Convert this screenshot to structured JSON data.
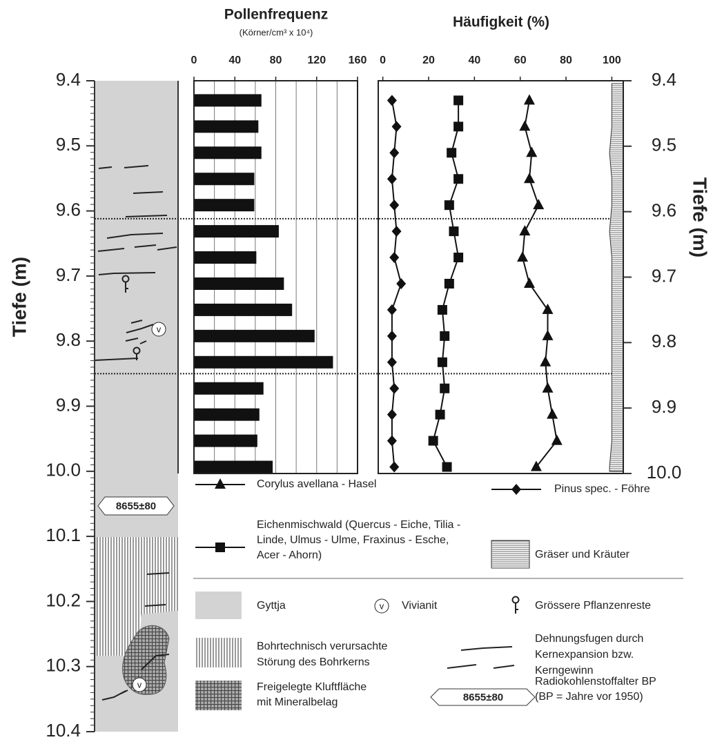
{
  "chart_data": [
    {
      "type": "depth",
      "ylabel": "Tiefe (m)",
      "ylim": [
        9.4,
        10.4
      ],
      "yticks": [
        9.4,
        9.5,
        9.6,
        9.7,
        9.8,
        9.9,
        {
          "value": 10,
          "label": "10.0"
        },
        10.1,
        10.2,
        10.3,
        10.4
      ],
      "minor_tick_step": 0.01,
      "boundaries": [
        9.612,
        9.85
      ],
      "date_label": "8655±80"
    },
    {
      "type": "bar",
      "title": "Pollenfrequenz",
      "subtitle": "(Körner/cm³ x 10⁴)",
      "y": [
        9.43,
        9.47,
        9.51,
        9.55,
        9.59,
        9.63,
        9.67,
        9.71,
        9.75,
        9.79,
        9.83,
        9.87,
        9.91,
        9.95,
        9.99
      ],
      "values": [
        66,
        63,
        66,
        59,
        59,
        83,
        61,
        88,
        96,
        118,
        136,
        68,
        64,
        62,
        77
      ],
      "color": "#111111",
      "xlim": [
        0,
        160
      ],
      "xticks": [
        0,
        40,
        80,
        120,
        160
      ],
      "xgrid": [
        20,
        40,
        60,
        80,
        100,
        120,
        140
      ],
      "ylim": [
        9.4,
        10.0
      ]
    },
    {
      "type": "line",
      "title": "Häufigkeit (%)",
      "y": [
        9.43,
        9.47,
        9.51,
        9.55,
        9.59,
        9.63,
        9.67,
        9.71,
        9.75,
        9.79,
        9.83,
        9.87,
        9.91,
        9.95,
        9.99
      ],
      "xlim": [
        -2,
        105
      ],
      "xticks": [
        0,
        20,
        40,
        60,
        80,
        100
      ],
      "ylim": [
        9.4,
        10.0
      ],
      "ylabel": "Tiefe (m)",
      "yticks": [
        9.4,
        9.5,
        9.6,
        9.7,
        9.8,
        9.9,
        {
          "value": 10,
          "label": "10.0"
        }
      ],
      "series": [
        {
          "name": "Corylus avellana - Hasel",
          "color": "#111111",
          "marker": "triangle",
          "values": [
            64,
            62,
            65,
            64,
            68,
            62,
            61,
            64,
            72,
            72,
            71,
            72,
            74,
            76,
            67
          ]
        },
        {
          "name": "Pinus spec. - Föhre",
          "color": "#111111",
          "marker": "diamond",
          "values": [
            4,
            6,
            5,
            4,
            5,
            6,
            5,
            8,
            4,
            4,
            4,
            5,
            4,
            4,
            5
          ]
        },
        {
          "name": "Eichenmischwald (Quercus - Eiche, Tilia - Linde, Ulmus - Ulme, Fraxinus - Esche, Acer - Ahorn)",
          "color": "#111111",
          "marker": "square",
          "values": [
            33,
            33,
            30,
            33,
            29,
            31,
            33,
            29,
            26,
            27,
            26,
            27,
            25,
            22,
            28
          ]
        },
        {
          "name": "Gräser und Kräuter",
          "color": "#333333",
          "marker": "hatched-area",
          "values": [
            5,
            5,
            6,
            5,
            5,
            6,
            5,
            5,
            5,
            5,
            5,
            5,
            5,
            5,
            6
          ]
        }
      ]
    }
  ],
  "vivianite_symbol": "v",
  "legend": [
    {
      "lines": [
        "Gyttja"
      ]
    },
    {
      "lines": [
        "Vivianit"
      ]
    },
    {
      "lines": [
        "Grössere Pflanzenreste"
      ]
    },
    {
      "lines": [
        "Bohrtechnisch verursachte",
        "Störung des Bohrkerns"
      ]
    },
    {
      "lines": [
        "Dehnungsfugen durch",
        "Kernexpansion bzw.",
        "Kerngewinn"
      ]
    },
    {
      "lines": [
        "Freigelegte Kluftfläche",
        "mit Mineralbelag"
      ]
    },
    {
      "lines": [
        "Radiokohlenstoffalter BP",
        "(BP = Jahre vor 1950)"
      ]
    }
  ]
}
